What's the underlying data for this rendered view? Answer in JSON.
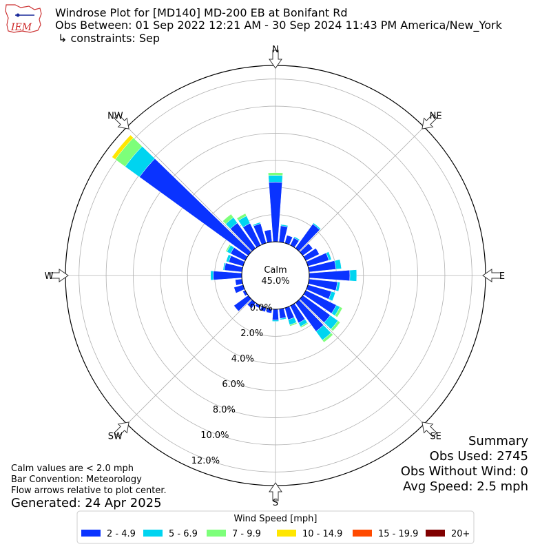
{
  "header": {
    "line1": "Windrose Plot for [MD140] MD-200 EB at Bonifant Rd",
    "line2": "Obs Between: 01 Sep 2022 12:21 AM - 30 Sep 2024 11:43 PM America/New_York",
    "line3": "↳ constraints: Sep",
    "logo_text": "IEM"
  },
  "calm": {
    "label": "Calm",
    "value": "45.0%"
  },
  "notes": {
    "line1": "Calm values are < 2.0 mph",
    "line2": "Bar Convention: Meteorology",
    "line3": "Flow arrows relative to plot center.",
    "generated": "Generated: 24 Apr 2025"
  },
  "summary": {
    "title": "Summary",
    "obs_used": "Obs Used: 2745",
    "obs_without_wind": "Obs Without Wind: 0",
    "avg_speed": "Avg Speed: 2.5 mph"
  },
  "chart_data": {
    "type": "windrose",
    "radial_unit": "percent",
    "radial_ticks": [
      "0.0%",
      "2.0%",
      "4.0%",
      "6.0%",
      "8.0%",
      "10.0%",
      "12.0%"
    ],
    "rmax": 13.0,
    "directions": [
      "N",
      "NE",
      "E",
      "SE",
      "S",
      "SW",
      "W",
      "NW"
    ],
    "sector_count": 36,
    "legend_title": "Wind Speed [mph]",
    "bins": [
      {
        "label": "2 - 4.9",
        "color": "#0a33ff"
      },
      {
        "label": "5 - 6.9",
        "color": "#00d4f0"
      },
      {
        "label": "7 - 9.9",
        "color": "#7dff7a"
      },
      {
        "label": "10 - 14.9",
        "color": "#ffe600"
      },
      {
        "label": "15 - 19.9",
        "color": "#ff4a00"
      },
      {
        "label": "20+",
        "color": "#800000"
      }
    ],
    "sectors": [
      {
        "angle": 0,
        "values": [
          4.4,
          0.5,
          0.2,
          0,
          0,
          0
        ]
      },
      {
        "angle": 10,
        "values": [
          1.2,
          0.1,
          0,
          0,
          0,
          0
        ]
      },
      {
        "angle": 20,
        "values": [
          0.6,
          0,
          0,
          0,
          0,
          0
        ]
      },
      {
        "angle": 30,
        "values": [
          0.6,
          0.1,
          0,
          0,
          0,
          0
        ]
      },
      {
        "angle": 40,
        "values": [
          2.2,
          0.1,
          0,
          0,
          0,
          0
        ]
      },
      {
        "angle": 50,
        "values": [
          0.9,
          0,
          0,
          0,
          0,
          0
        ]
      },
      {
        "angle": 60,
        "values": [
          1.1,
          0,
          0,
          0,
          0,
          0
        ]
      },
      {
        "angle": 70,
        "values": [
          1.6,
          0.2,
          0,
          0,
          0,
          0
        ]
      },
      {
        "angle": 80,
        "values": [
          2.0,
          0.4,
          0,
          0,
          0,
          0
        ]
      },
      {
        "angle": 90,
        "values": [
          3.0,
          0.5,
          0,
          0,
          0,
          0
        ]
      },
      {
        "angle": 100,
        "values": [
          2.1,
          0.2,
          0,
          0,
          0,
          0
        ]
      },
      {
        "angle": 110,
        "values": [
          1.8,
          0.3,
          0,
          0,
          0,
          0
        ]
      },
      {
        "angle": 120,
        "values": [
          2.5,
          0.3,
          0.2,
          0,
          0,
          0
        ]
      },
      {
        "angle": 130,
        "values": [
          2.5,
          0.7,
          0.2,
          0,
          0,
          0
        ]
      },
      {
        "angle": 140,
        "values": [
          2.6,
          0.8,
          0.2,
          0,
          0,
          0
        ]
      },
      {
        "angle": 150,
        "values": [
          1.4,
          0.3,
          0.1,
          0,
          0,
          0
        ]
      },
      {
        "angle": 160,
        "values": [
          0.9,
          0.4,
          0.1,
          0,
          0,
          0
        ]
      },
      {
        "angle": 170,
        "values": [
          0.7,
          0.1,
          0,
          0,
          0,
          0
        ]
      },
      {
        "angle": 180,
        "values": [
          0.8,
          0.1,
          0,
          0,
          0,
          0
        ]
      },
      {
        "angle": 190,
        "values": [
          0.3,
          0,
          0,
          0,
          0,
          0
        ]
      },
      {
        "angle": 200,
        "values": [
          0.3,
          0,
          0,
          0,
          0,
          0
        ]
      },
      {
        "angle": 210,
        "values": [
          0.2,
          0,
          0,
          0,
          0,
          0
        ]
      },
      {
        "angle": 220,
        "values": [
          0.5,
          0,
          0,
          0,
          0,
          0
        ]
      },
      {
        "angle": 230,
        "values": [
          1.3,
          0,
          0,
          0,
          0,
          0
        ]
      },
      {
        "angle": 240,
        "values": [
          0.2,
          0,
          0,
          0,
          0,
          0
        ]
      },
      {
        "angle": 250,
        "values": [
          0.7,
          0,
          0,
          0,
          0,
          0
        ]
      },
      {
        "angle": 260,
        "values": [
          0.5,
          0,
          0,
          0,
          0,
          0
        ]
      },
      {
        "angle": 270,
        "values": [
          2.1,
          0.2,
          0,
          0,
          0,
          0
        ]
      },
      {
        "angle": 280,
        "values": [
          1.3,
          0.1,
          0,
          0,
          0,
          0
        ]
      },
      {
        "angle": 290,
        "values": [
          1.1,
          0.2,
          0,
          0,
          0,
          0
        ]
      },
      {
        "angle": 300,
        "values": [
          1.2,
          0.3,
          0.1,
          0,
          0,
          0
        ]
      },
      {
        "angle": 310,
        "values": [
          9.9,
          1.3,
          0.9,
          0.3,
          0,
          0
        ]
      },
      {
        "angle": 320,
        "values": [
          2.3,
          0.5,
          0.3,
          0,
          0,
          0
        ]
      },
      {
        "angle": 330,
        "values": [
          1.8,
          0.6,
          0.2,
          0,
          0,
          0
        ]
      },
      {
        "angle": 340,
        "values": [
          1.5,
          0.1,
          0,
          0,
          0,
          0
        ]
      },
      {
        "angle": 350,
        "values": [
          0.9,
          0,
          0,
          0,
          0,
          0
        ]
      }
    ]
  }
}
